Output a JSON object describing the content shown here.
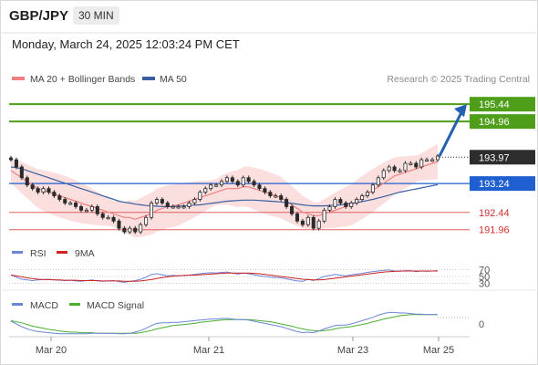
{
  "header": {
    "symbol": "GBP/JPY",
    "timeframe": "30 MIN",
    "datetime": "Monday, March 24, 2025 12:03:24 PM CET"
  },
  "legend": {
    "ma20": "MA 20 + Bollinger Bands",
    "ma50": "MA 50",
    "credit": "Research © 2025 Trading Central"
  },
  "colors": {
    "up": "#1a9a3c",
    "down": "#1a9a3c",
    "candle": "#2a2a2a",
    "ma20": "#f08080",
    "ma50": "#3a5fa0",
    "band": "#f9d3d3",
    "resistance": "#4f9e1a",
    "support": "#1f5fcf",
    "minor": "#e06060",
    "arrow": "#2460b0",
    "rsi": "#6b86d6",
    "rsi_ma": "#cc2222",
    "macd": "#6b86d6",
    "macd_signal": "#4caf30"
  },
  "levels": [
    {
      "value": 195.44,
      "label": "195.44",
      "kind": "resistance"
    },
    {
      "value": 194.96,
      "label": "194.96",
      "kind": "resistance"
    },
    {
      "value": 193.97,
      "label": "193.97",
      "kind": "last"
    },
    {
      "value": 193.24,
      "label": "193.24",
      "kind": "support"
    },
    {
      "value": 192.44,
      "label": "192.44",
      "kind": "minor"
    },
    {
      "value": 191.96,
      "label": "191.96",
      "kind": "minor"
    }
  ],
  "rsi_panel": {
    "label": "RSI",
    "ma_label": "9MA",
    "levels": [
      "70",
      "50",
      "30"
    ]
  },
  "macd_panel": {
    "label": "MACD",
    "signal_label": "MACD Signal",
    "zero": "0"
  },
  "chart_data": {
    "type": "candlestick",
    "title": "GBP/JPY 30 MIN",
    "x_ticks": [
      "Mar 20",
      "Mar 21",
      "Mar 23",
      "Mar 25"
    ],
    "ylim": [
      191.7,
      195.9
    ],
    "close": [
      193.9,
      193.7,
      193.4,
      193.2,
      193.1,
      193.0,
      193.1,
      193.0,
      192.9,
      192.8,
      192.7,
      192.7,
      192.6,
      192.5,
      192.5,
      192.6,
      192.4,
      192.3,
      192.3,
      192.2,
      192.0,
      191.9,
      192.0,
      191.9,
      192.1,
      192.3,
      192.7,
      192.8,
      192.7,
      192.6,
      192.6,
      192.6,
      192.6,
      192.7,
      192.8,
      193.0,
      193.1,
      193.2,
      193.2,
      193.3,
      193.4,
      193.3,
      193.2,
      193.4,
      193.3,
      193.2,
      193.1,
      193.0,
      192.9,
      192.9,
      192.8,
      192.6,
      192.4,
      192.2,
      192.1,
      192.3,
      192.0,
      192.2,
      192.5,
      192.6,
      192.8,
      192.7,
      192.6,
      192.7,
      192.8,
      192.9,
      193.0,
      193.2,
      193.4,
      193.6,
      193.7,
      193.6,
      193.6,
      193.8,
      193.8,
      193.7,
      193.9,
      193.9,
      193.9,
      194.0
    ],
    "ma20": [
      193.6,
      193.5,
      193.4,
      193.3,
      193.2,
      193.1,
      193.05,
      193.0,
      192.95,
      192.9,
      192.85,
      192.8,
      192.75,
      192.7,
      192.65,
      192.6,
      192.55,
      192.5,
      192.45,
      192.4,
      192.35,
      192.3,
      192.3,
      192.25,
      192.3,
      192.35,
      192.4,
      192.5,
      192.55,
      192.6,
      192.62,
      192.65,
      192.7,
      192.75,
      192.8,
      192.85,
      192.9,
      192.95,
      193.0,
      193.05,
      193.1,
      193.1,
      193.1,
      193.15,
      193.15,
      193.1,
      193.05,
      193.0,
      192.95,
      192.9,
      192.85,
      192.75,
      192.65,
      192.55,
      192.45,
      192.4,
      192.35,
      192.35,
      192.4,
      192.45,
      192.5,
      192.55,
      192.6,
      192.65,
      192.75,
      192.85,
      192.95,
      193.05,
      193.15,
      193.25,
      193.35,
      193.45,
      193.5,
      193.55,
      193.6,
      193.65,
      193.7,
      193.75,
      193.8,
      193.85
    ],
    "ma50": [
      193.7,
      193.68,
      193.65,
      193.6,
      193.55,
      193.5,
      193.45,
      193.4,
      193.35,
      193.3,
      193.25,
      193.2,
      193.15,
      193.1,
      193.05,
      193.0,
      192.95,
      192.9,
      192.85,
      192.8,
      192.75,
      192.72,
      192.7,
      192.67,
      192.65,
      192.63,
      192.62,
      192.61,
      192.6,
      192.6,
      192.6,
      192.61,
      192.62,
      192.63,
      192.64,
      192.65,
      192.67,
      192.69,
      192.71,
      192.73,
      192.75,
      192.76,
      192.77,
      192.78,
      192.78,
      192.78,
      192.77,
      192.76,
      192.75,
      192.74,
      192.73,
      192.71,
      192.69,
      192.67,
      192.65,
      192.63,
      192.62,
      192.62,
      192.62,
      192.63,
      192.64,
      192.65,
      192.67,
      192.69,
      192.71,
      192.74,
      192.77,
      192.8,
      192.84,
      192.88,
      192.92,
      192.96,
      193.0,
      193.03,
      193.06,
      193.09,
      193.12,
      193.15,
      193.18,
      193.21
    ],
    "rsi": [
      55,
      48,
      42,
      40,
      38,
      40,
      41,
      42,
      40,
      39,
      38,
      39,
      37,
      36,
      38,
      40,
      37,
      36,
      37,
      38,
      35,
      33,
      36,
      38,
      42,
      48,
      56,
      58,
      55,
      52,
      53,
      52,
      53,
      54,
      56,
      58,
      60,
      61,
      60,
      62,
      63,
      60,
      57,
      60,
      58,
      55,
      52,
      50,
      48,
      47,
      46,
      43,
      40,
      37,
      36,
      42,
      38,
      44,
      50,
      53,
      56,
      54,
      52,
      55,
      57,
      59,
      62,
      64,
      66,
      68,
      69,
      66,
      65,
      67,
      67,
      64,
      66,
      65,
      66,
      67
    ],
    "rsi_ma": [
      54,
      52,
      49,
      46,
      44,
      42,
      41,
      41,
      40,
      40,
      39,
      39,
      39,
      38,
      38,
      38,
      38,
      37,
      37,
      37,
      37,
      36,
      36,
      36,
      37,
      39,
      41,
      44,
      47,
      49,
      51,
      52,
      53,
      54,
      54,
      55,
      56,
      57,
      58,
      59,
      60,
      60,
      60,
      60,
      60,
      59,
      58,
      56,
      54,
      52,
      50,
      48,
      46,
      44,
      42,
      41,
      40,
      40,
      41,
      43,
      45,
      47,
      49,
      51,
      53,
      55,
      57,
      59,
      61,
      63,
      64,
      65,
      66,
      66,
      66,
      66,
      66,
      66,
      66,
      66
    ],
    "macd": [
      0.05,
      0.0,
      -0.05,
      -0.09,
      -0.12,
      -0.14,
      -0.15,
      -0.16,
      -0.17,
      -0.18,
      -0.18,
      -0.18,
      -0.18,
      -0.18,
      -0.18,
      -0.17,
      -0.17,
      -0.17,
      -0.17,
      -0.17,
      -0.18,
      -0.18,
      -0.17,
      -0.15,
      -0.12,
      -0.08,
      -0.03,
      0.01,
      0.02,
      0.02,
      0.03,
      0.03,
      0.04,
      0.05,
      0.06,
      0.07,
      0.08,
      0.09,
      0.09,
      0.1,
      0.1,
      0.09,
      0.08,
      0.08,
      0.07,
      0.05,
      0.03,
      0.01,
      -0.01,
      -0.03,
      -0.05,
      -0.08,
      -0.11,
      -0.14,
      -0.16,
      -0.15,
      -0.16,
      -0.13,
      -0.09,
      -0.06,
      -0.03,
      -0.02,
      -0.02,
      0.0,
      0.03,
      0.06,
      0.09,
      0.12,
      0.16,
      0.19,
      0.21,
      0.21,
      0.2,
      0.2,
      0.19,
      0.18,
      0.18,
      0.17,
      0.17,
      0.17
    ],
    "macd_signal": [
      0.06,
      0.04,
      0.02,
      -0.01,
      -0.04,
      -0.06,
      -0.08,
      -0.1,
      -0.11,
      -0.13,
      -0.14,
      -0.15,
      -0.15,
      -0.16,
      -0.16,
      -0.16,
      -0.17,
      -0.17,
      -0.17,
      -0.17,
      -0.17,
      -0.17,
      -0.17,
      -0.17,
      -0.16,
      -0.14,
      -0.12,
      -0.09,
      -0.07,
      -0.05,
      -0.03,
      -0.02,
      -0.01,
      0.0,
      0.01,
      0.03,
      0.04,
      0.05,
      0.06,
      0.07,
      0.08,
      0.08,
      0.08,
      0.08,
      0.08,
      0.07,
      0.06,
      0.05,
      0.04,
      0.02,
      0.0,
      -0.02,
      -0.04,
      -0.07,
      -0.09,
      -0.11,
      -0.12,
      -0.13,
      -0.12,
      -0.11,
      -0.09,
      -0.07,
      -0.06,
      -0.05,
      -0.03,
      -0.01,
      0.01,
      0.04,
      0.06,
      0.09,
      0.11,
      0.13,
      0.15,
      0.16,
      0.17,
      0.17,
      0.17,
      0.17,
      0.17,
      0.17
    ],
    "arrow_target": 195.44,
    "grid": false,
    "legend_position": "top-left"
  }
}
